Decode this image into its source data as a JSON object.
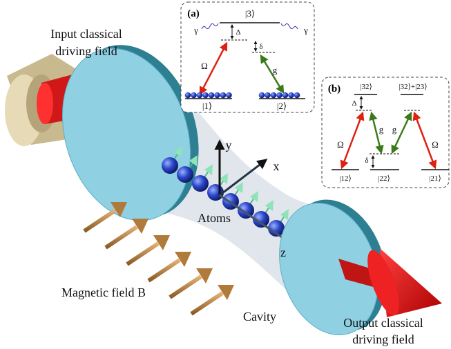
{
  "labels": {
    "input_field": [
      "Input classical",
      "driving field"
    ],
    "atoms": "Atoms",
    "magnetic_field": "Magnetic field B",
    "cavity": "Cavity",
    "output_field": [
      "Output classical",
      "driving field"
    ],
    "axes": {
      "x": "x",
      "y": "y",
      "z": "z"
    }
  },
  "panel_a": {
    "tag": "(a)",
    "excited_state": "|3⟩",
    "detuning": "Δ",
    "two_photon_detuning": "δ",
    "decay_left": "γ",
    "decay_right": "γ",
    "pump": "Ω",
    "coupling": "g",
    "ground_1": "|1⟩",
    "ground_2": "|2⟩"
  },
  "panel_b": {
    "tag": "(b)",
    "excited_state_1": "|32⟩",
    "excited_state_2": "|32⟩+|23⟩",
    "detuning": "Δ",
    "two_photon_detuning": "δ",
    "pump_left": "Ω",
    "coupling_left": "g",
    "coupling_right": "g",
    "pump_right": "Ω",
    "ground_12": "|12⟩",
    "ground_22": "|22⟩",
    "ground_21": "|21⟩"
  }
}
